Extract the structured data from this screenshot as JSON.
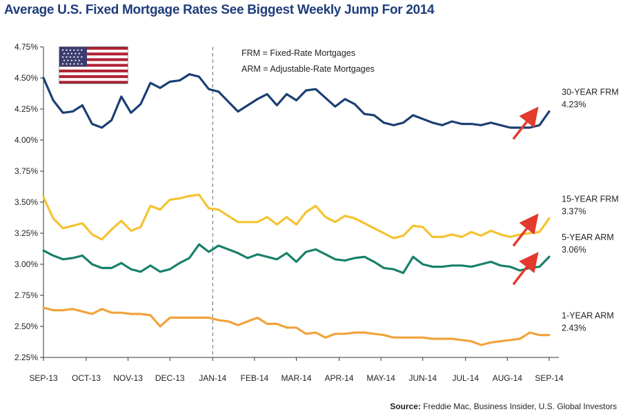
{
  "colors": {
    "frm30": "#1b3f72",
    "frm15": "#f5c230",
    "arm5": "#17806a",
    "arm1": "#f2a23a",
    "arrow": "#e23a2c",
    "title": "#1f3d7a"
  },
  "icons": {
    "flag": "us-flag-icon",
    "arrow": "red-up-arrow-icon"
  },
  "chart_data": {
    "type": "line",
    "title": "Average U.S. Fixed Mortgage Rates See Biggest Weekly Jump For 2014",
    "source_label": "Source:",
    "source_text": " Freddie Mac, Business Insider, U.S. Global Investors",
    "legend_notes": [
      "FRM = Fixed-Rate Mortgages",
      "ARM = Adjustable-Rate Mortgages"
    ],
    "ylim": [
      2.25,
      4.75
    ],
    "yticks": [
      2.25,
      2.5,
      2.75,
      3.0,
      3.25,
      3.5,
      3.75,
      4.0,
      4.25,
      4.5,
      4.75
    ],
    "ytick_labels": [
      "2.25%",
      "2.50%",
      "2.75%",
      "3.00%",
      "3.25%",
      "3.50%",
      "3.75%",
      "4.00%",
      "4.25%",
      "4.50%",
      "4.75%"
    ],
    "xlim": [
      0,
      53
    ],
    "x_ticks": [
      0,
      4.4,
      8.7,
      13,
      17.4,
      21.7,
      26,
      30.4,
      34.7,
      39,
      43.4,
      47.7,
      52
    ],
    "x_tick_labels": [
      "SEP-13",
      "OCT-13",
      "NOV-13",
      "DEC-13",
      "JAN-14",
      "FEB-14",
      "MAR-14",
      "APR-14",
      "MAY-14",
      "JUN-14",
      "JUL-14",
      "AUG-14",
      "SEP-14"
    ],
    "divider_x": 17.4,
    "grid": false,
    "series": [
      {
        "key": "frm30",
        "name": "30-YEAR FRM",
        "last_label": "4.23%",
        "values": [
          4.5,
          4.32,
          4.22,
          4.23,
          4.28,
          4.13,
          4.1,
          4.16,
          4.35,
          4.22,
          4.29,
          4.46,
          4.42,
          4.47,
          4.48,
          4.53,
          4.51,
          4.41,
          4.39,
          4.31,
          4.23,
          4.28,
          4.33,
          4.37,
          4.28,
          4.37,
          4.32,
          4.4,
          4.41,
          4.34,
          4.27,
          4.33,
          4.29,
          4.21,
          4.2,
          4.14,
          4.12,
          4.14,
          4.2,
          4.17,
          4.14,
          4.12,
          4.15,
          4.13,
          4.13,
          4.12,
          4.14,
          4.12,
          4.1,
          4.1,
          4.1,
          4.12,
          4.23
        ]
      },
      {
        "key": "frm15",
        "name": "15-YEAR FRM",
        "last_label": "3.37%",
        "values": [
          3.54,
          3.37,
          3.29,
          3.31,
          3.33,
          3.24,
          3.2,
          3.28,
          3.35,
          3.27,
          3.3,
          3.47,
          3.44,
          3.52,
          3.53,
          3.55,
          3.56,
          3.45,
          3.44,
          3.39,
          3.34,
          3.34,
          3.34,
          3.38,
          3.32,
          3.38,
          3.32,
          3.42,
          3.47,
          3.38,
          3.34,
          3.39,
          3.37,
          3.33,
          3.29,
          3.25,
          3.21,
          3.23,
          3.31,
          3.3,
          3.22,
          3.22,
          3.24,
          3.22,
          3.26,
          3.23,
          3.27,
          3.24,
          3.22,
          3.24,
          3.25,
          3.26,
          3.37
        ]
      },
      {
        "key": "arm5",
        "name": "5-YEAR ARM",
        "last_label": "3.06%",
        "values": [
          3.11,
          3.07,
          3.04,
          3.05,
          3.07,
          3.0,
          2.97,
          2.97,
          3.01,
          2.96,
          2.94,
          2.99,
          2.94,
          2.96,
          3.01,
          3.05,
          3.16,
          3.1,
          3.15,
          3.12,
          3.09,
          3.05,
          3.08,
          3.06,
          3.04,
          3.09,
          3.02,
          3.1,
          3.12,
          3.08,
          3.04,
          3.03,
          3.05,
          3.06,
          3.02,
          2.97,
          2.96,
          2.93,
          3.06,
          3.0,
          2.98,
          2.98,
          2.99,
          2.99,
          2.98,
          3.0,
          3.02,
          2.99,
          2.98,
          2.95,
          2.97,
          2.98,
          3.06
        ]
      },
      {
        "key": "arm1",
        "name": "1-YEAR ARM",
        "last_label": "2.43%",
        "values": [
          2.65,
          2.63,
          2.63,
          2.64,
          2.62,
          2.6,
          2.64,
          2.61,
          2.61,
          2.6,
          2.6,
          2.59,
          2.5,
          2.57,
          2.57,
          2.57,
          2.57,
          2.57,
          2.55,
          2.54,
          2.51,
          2.54,
          2.57,
          2.52,
          2.52,
          2.49,
          2.49,
          2.44,
          2.45,
          2.41,
          2.44,
          2.44,
          2.45,
          2.45,
          2.44,
          2.43,
          2.41,
          2.41,
          2.41,
          2.41,
          2.4,
          2.4,
          2.4,
          2.39,
          2.38,
          2.35,
          2.37,
          2.38,
          2.39,
          2.4,
          2.45,
          2.43,
          2.43
        ]
      }
    ]
  }
}
